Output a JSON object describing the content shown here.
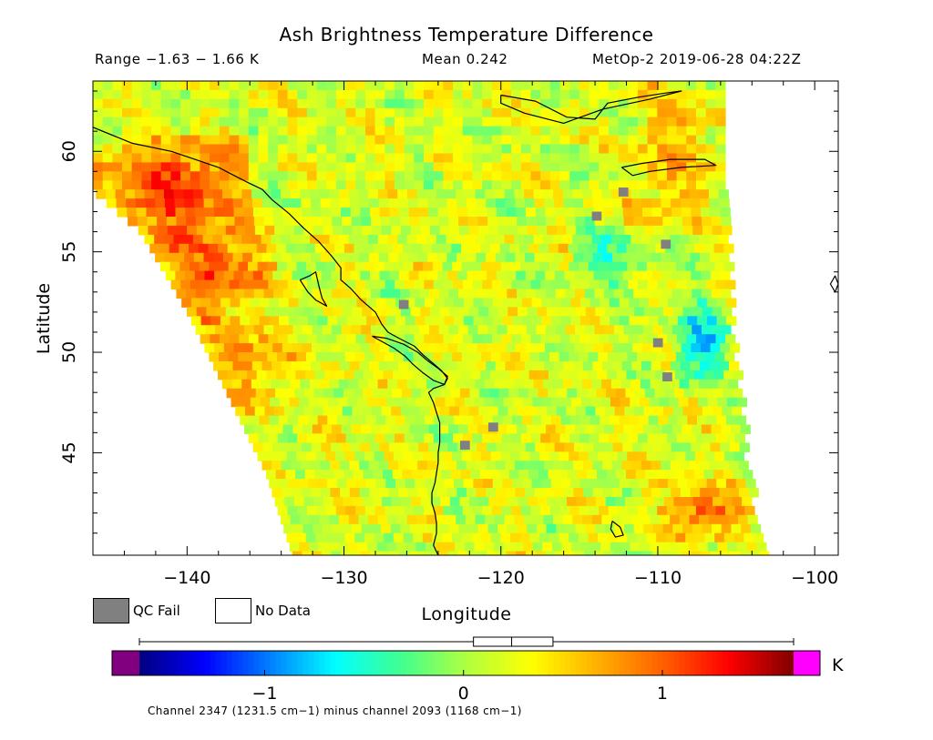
{
  "header": {
    "title": "Ash Brightness Temperature Difference",
    "range": "Range −1.63 − 1.66 K",
    "mean": "Mean 0.242",
    "source": "MetOp-2 2019-06-28 04:22Z"
  },
  "legend": {
    "qc_fail": "QC Fail",
    "no_data": "No Data",
    "qc_fail_color": "#808080",
    "no_data_color": "#ffffff"
  },
  "footer": {
    "caption": "Channel 2347 (1231.5 cm−1) minus channel 2093 (1168 cm−1)"
  },
  "chart_data": {
    "type": "heatmap",
    "title": "Ash Brightness Temperature Difference",
    "xlabel": "Longitude",
    "ylabel": "Latitude",
    "xlim": [
      -146,
      -98.5
    ],
    "ylim": [
      39.9,
      63.5
    ],
    "xticks": [
      -140,
      -130,
      -120,
      -110,
      -100
    ],
    "xtick_labels": [
      "−140",
      "−130",
      "−120",
      "−110",
      "−100"
    ],
    "yticks": [
      45,
      50,
      55,
      60
    ],
    "ytick_labels": [
      "45",
      "50",
      "55",
      "60"
    ],
    "colorbar": {
      "min": -1.63,
      "max": 1.66,
      "ticks": [
        -1,
        0,
        1
      ],
      "tick_labels": [
        "−1",
        "0",
        "1"
      ],
      "unit": "K",
      "colors": [
        "#000080",
        "#0000ff",
        "#0080ff",
        "#00ffff",
        "#40ff90",
        "#b0ff40",
        "#ffff00",
        "#ffb000",
        "#ff6000",
        "#ff0000",
        "#800000"
      ],
      "under_color": "#800080",
      "over_color": "#ff00ff",
      "boxplot": {
        "min": -1.63,
        "q1": 0.05,
        "median": 0.242,
        "q3": 0.45,
        "max": 1.66
      }
    },
    "grid": false,
    "swath_edge_longitude": {
      "left": [
        [
          63.5,
          -146.0
        ],
        [
          58.0,
          -146.0
        ],
        [
          56.0,
          -143.0
        ],
        [
          52.0,
          -140.0
        ],
        [
          48.0,
          -137.5
        ],
        [
          44.0,
          -135.0
        ],
        [
          39.9,
          -133.3
        ]
      ],
      "right": [
        [
          63.5,
          -106.0
        ],
        [
          58.0,
          -105.9
        ],
        [
          52.0,
          -105.5
        ],
        [
          48.0,
          -105.0
        ],
        [
          44.0,
          -104.4
        ],
        [
          39.9,
          -103.5
        ]
      ]
    },
    "value_regions": [
      {
        "lat": [
          55.0,
          61.0
        ],
        "lon": [
          -146.0,
          -136.0
        ],
        "value": 1.3
      },
      {
        "lat": [
          51.5,
          56.5
        ],
        "lon": [
          -142.0,
          -134.5
        ],
        "value": 1.1
      },
      {
        "lat": [
          47.0,
          52.0
        ],
        "lon": [
          -139.0,
          -133.0
        ],
        "value": 0.8
      },
      {
        "lat": [
          48.0,
          53.0
        ],
        "lon": [
          -109.0,
          -105.5
        ],
        "value": -0.8
      },
      {
        "lat": [
          53.0,
          56.5
        ],
        "lon": [
          -116.0,
          -110.0
        ],
        "value": -0.4
      },
      {
        "lat": [
          40.5,
          43.5
        ],
        "lon": [
          -110.0,
          -104.0
        ],
        "value": 1.0
      },
      {
        "lat": [
          56.0,
          63.5
        ],
        "lon": [
          -112.0,
          -106.0
        ],
        "value": 0.7
      }
    ],
    "qc_fail_cells": [
      [
        58.2,
        -112.5
      ],
      [
        57.0,
        -114.2
      ],
      [
        52.6,
        -126.5
      ],
      [
        50.7,
        -110.3
      ],
      [
        49.0,
        -109.7
      ],
      [
        46.5,
        -120.8
      ],
      [
        45.6,
        -122.6
      ],
      [
        55.6,
        -109.8
      ]
    ],
    "coastlines": [
      [
        [
          61.2,
          -146.0
        ],
        [
          60.4,
          -143.5
        ],
        [
          60.0,
          -141.0
        ],
        [
          59.6,
          -139.5
        ],
        [
          59.2,
          -138.0
        ],
        [
          58.8,
          -137.0
        ],
        [
          58.4,
          -136.0
        ],
        [
          58.1,
          -135.2
        ],
        [
          57.6,
          -134.6
        ],
        [
          56.9,
          -133.5
        ],
        [
          56.2,
          -132.6
        ],
        [
          55.5,
          -131.6
        ],
        [
          54.8,
          -130.8
        ],
        [
          54.2,
          -130.2
        ],
        [
          53.6,
          -130.2
        ],
        [
          53.2,
          -129.6
        ],
        [
          52.6,
          -128.9
        ],
        [
          52.0,
          -128.0
        ],
        [
          51.4,
          -127.6
        ],
        [
          51.0,
          -127.2
        ],
        [
          50.7,
          -126.5
        ],
        [
          50.3,
          -125.5
        ],
        [
          49.9,
          -125.0
        ],
        [
          49.5,
          -124.4
        ],
        [
          49.1,
          -123.8
        ],
        [
          48.7,
          -123.4
        ],
        [
          48.4,
          -123.6
        ],
        [
          48.2,
          -124.3
        ],
        [
          48.0,
          -124.6
        ],
        [
          47.5,
          -124.3
        ],
        [
          47.0,
          -124.1
        ],
        [
          46.5,
          -123.9
        ],
        [
          46.0,
          -123.9
        ],
        [
          45.5,
          -123.9
        ],
        [
          45.0,
          -124.0
        ],
        [
          44.5,
          -124.0
        ],
        [
          44.0,
          -124.1
        ],
        [
          43.5,
          -124.2
        ],
        [
          43.0,
          -124.4
        ],
        [
          42.5,
          -124.4
        ],
        [
          42.0,
          -124.2
        ],
        [
          41.5,
          -124.1
        ],
        [
          41.0,
          -124.1
        ],
        [
          40.4,
          -124.3
        ],
        [
          39.9,
          -124.0
        ]
      ],
      [
        [
          53.6,
          -132.8
        ],
        [
          53.8,
          -132.2
        ],
        [
          54.0,
          -131.8
        ],
        [
          53.3,
          -131.6
        ],
        [
          52.7,
          -131.4
        ],
        [
          52.3,
          -131.1
        ],
        [
          52.6,
          -131.8
        ],
        [
          53.0,
          -132.3
        ],
        [
          53.6,
          -132.8
        ]
      ],
      [
        [
          50.8,
          -128.2
        ],
        [
          50.5,
          -127.5
        ],
        [
          50.2,
          -126.8
        ],
        [
          49.8,
          -126.1
        ],
        [
          49.4,
          -125.6
        ],
        [
          49.0,
          -125.0
        ],
        [
          48.6,
          -124.3
        ],
        [
          48.4,
          -123.6
        ],
        [
          48.8,
          -123.4
        ],
        [
          49.2,
          -124.0
        ],
        [
          49.6,
          -124.7
        ],
        [
          50.0,
          -125.3
        ],
        [
          50.4,
          -126.2
        ],
        [
          50.7,
          -127.3
        ],
        [
          50.8,
          -128.2
        ]
      ],
      [
        [
          62.8,
          -120.0
        ],
        [
          62.5,
          -117.8
        ],
        [
          61.7,
          -115.8
        ],
        [
          61.6,
          -114.0
        ],
        [
          62.4,
          -113.2
        ],
        [
          62.7,
          -111.2
        ],
        [
          62.9,
          -109.5
        ],
        [
          63.0,
          -108.5
        ],
        [
          62.6,
          -110.5
        ],
        [
          62.1,
          -113.5
        ],
        [
          61.4,
          -116.0
        ],
        [
          61.9,
          -118.5
        ],
        [
          62.4,
          -120.0
        ],
        [
          62.8,
          -120.0
        ]
      ],
      [
        [
          59.2,
          -112.3
        ],
        [
          59.4,
          -111.0
        ],
        [
          59.6,
          -109.2
        ],
        [
          59.6,
          -107.0
        ],
        [
          59.3,
          -106.3
        ],
        [
          59.2,
          -108.5
        ],
        [
          59.0,
          -110.5
        ],
        [
          58.8,
          -111.6
        ],
        [
          59.2,
          -112.3
        ]
      ],
      [
        [
          53.4,
          -98.5
        ],
        [
          53.8,
          -98.7
        ],
        [
          53.4,
          -99.0
        ],
        [
          53.0,
          -98.7
        ],
        [
          53.4,
          -98.5
        ]
      ],
      [
        [
          41.6,
          -112.9
        ],
        [
          41.3,
          -112.4
        ],
        [
          40.9,
          -112.2
        ],
        [
          40.8,
          -112.7
        ],
        [
          41.2,
          -113.0
        ],
        [
          41.6,
          -112.9
        ]
      ]
    ]
  }
}
